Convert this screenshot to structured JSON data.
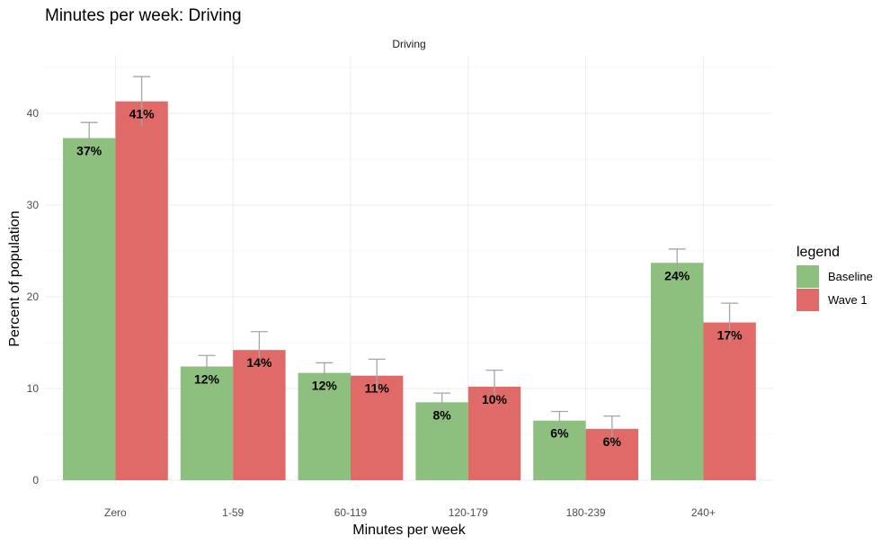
{
  "chart_data": {
    "type": "bar",
    "title": "Minutes per week: Driving",
    "facet_label": "Driving",
    "xlabel": "Minutes per week",
    "ylabel": "Percent of population",
    "categories": [
      "Zero",
      "1-59",
      "60-119",
      "120-179",
      "180-239",
      "240+"
    ],
    "ylim": [
      0,
      45
    ],
    "yticks": [
      0,
      10,
      20,
      30,
      40
    ],
    "grid": true,
    "legend": {
      "title": "legend",
      "position": "right"
    },
    "series": [
      {
        "name": "Baseline",
        "color": "#8dbf7f",
        "values": [
          37.3,
          12.4,
          11.7,
          8.5,
          6.5,
          23.7
        ],
        "error_low": [
          35.6,
          11.2,
          10.6,
          7.5,
          5.6,
          22.3
        ],
        "error_high": [
          39.0,
          13.6,
          12.8,
          9.5,
          7.5,
          25.2
        ],
        "labels": [
          "37%",
          "12%",
          "12%",
          "8%",
          "6%",
          "24%"
        ]
      },
      {
        "name": "Wave 1",
        "color": "#e06a67",
        "values": [
          41.3,
          14.2,
          11.4,
          10.2,
          5.6,
          17.2
        ],
        "error_low": [
          38.6,
          12.2,
          9.6,
          8.4,
          4.3,
          15.1
        ],
        "error_high": [
          44.0,
          16.2,
          13.2,
          12.0,
          7.0,
          19.3
        ],
        "labels": [
          "41%",
          "14%",
          "11%",
          "10%",
          "6%",
          "17%"
        ]
      }
    ]
  }
}
